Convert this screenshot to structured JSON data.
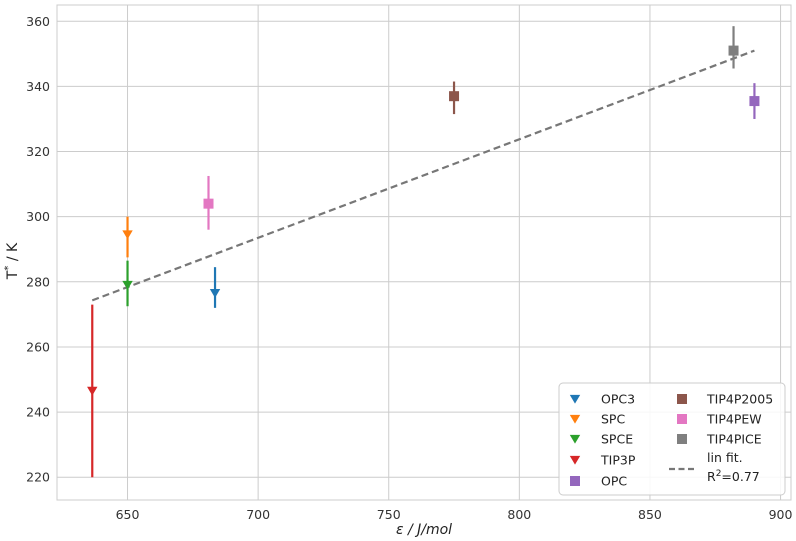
{
  "chart_data": {
    "type": "scatter",
    "title": "",
    "xlabel": "ε / J/mol",
    "ylabel_main": "T",
    "ylabel_sup": "*",
    "ylabel_rest": " / K",
    "xlim": [
      623,
      904
    ],
    "ylim": [
      213,
      365
    ],
    "xticks": [
      650,
      700,
      750,
      800,
      850,
      900
    ],
    "yticks": [
      220,
      240,
      260,
      280,
      300,
      320,
      340,
      360
    ],
    "grid": true,
    "legend_placement": "lower-right",
    "series": [
      {
        "name": "OPC3",
        "marker": "triangle-down",
        "color": "#1f77b4",
        "x": 683.5,
        "y": 276.5,
        "yerr_low": 272,
        "yerr_high": 284.5
      },
      {
        "name": "SPC",
        "marker": "triangle-down",
        "color": "#ff7f0e",
        "x": 650,
        "y": 294.5,
        "yerr_low": 287.5,
        "yerr_high": 300
      },
      {
        "name": "SPCE",
        "marker": "triangle-down",
        "color": "#2ca02c",
        "x": 650,
        "y": 279,
        "yerr_low": 272.5,
        "yerr_high": 286.5
      },
      {
        "name": "TIP3P",
        "marker": "triangle-down",
        "color": "#d62728",
        "x": 636.5,
        "y": 246.5,
        "yerr_low": 220,
        "yerr_high": 273
      },
      {
        "name": "OPC",
        "marker": "square",
        "color": "#9467bd",
        "x": 890,
        "y": 335.5,
        "yerr_low": 330,
        "yerr_high": 341
      },
      {
        "name": "TIP4P2005",
        "marker": "square",
        "color": "#8c564b",
        "x": 775,
        "y": 337,
        "yerr_low": 331.5,
        "yerr_high": 341.5
      },
      {
        "name": "TIP4PEW",
        "marker": "square",
        "color": "#e377c2",
        "x": 681,
        "y": 304,
        "yerr_low": 296,
        "yerr_high": 312.5
      },
      {
        "name": "TIP4PICE",
        "marker": "square",
        "color": "#7f7f7f",
        "x": 882,
        "y": 351,
        "yerr_low": 345.5,
        "yerr_high": 358.5
      }
    ],
    "fit_line": {
      "x": [
        636.5,
        890
      ],
      "y": [
        274.3,
        351
      ],
      "color": "#777777"
    },
    "legend": {
      "col1": [
        "OPC3",
        "SPC",
        "SPCE",
        "TIP3P",
        "OPC"
      ],
      "col2": [
        "TIP4P2005",
        "TIP4PEW",
        "TIP4PICE"
      ],
      "fit_label_line1": "lin fit.",
      "fit_label_line2_pre": "R",
      "fit_label_line2_sup": "2",
      "fit_label_line2_post": "=0.77"
    }
  }
}
